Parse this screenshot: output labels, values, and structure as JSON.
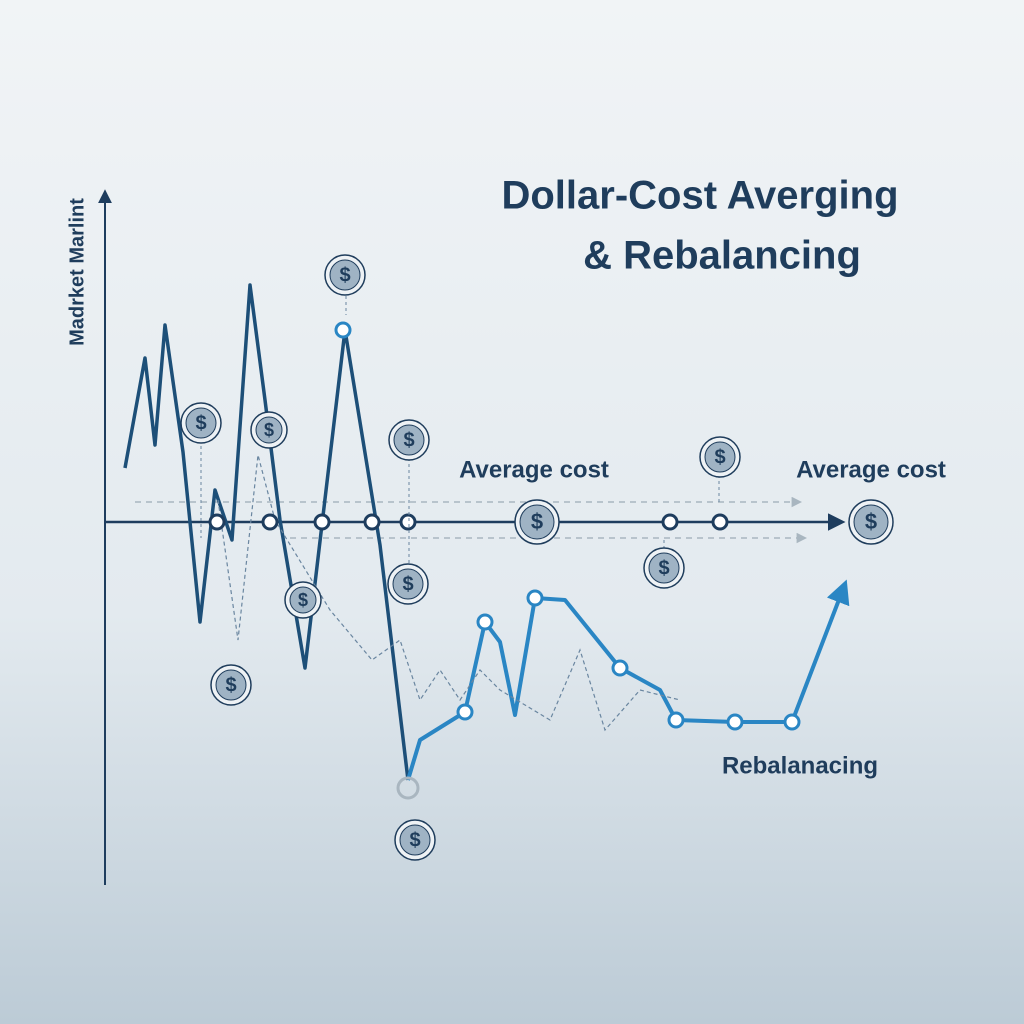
{
  "header": {
    "title_line1": "Dollar-Cost Averging",
    "title_line2": "& Rebalancing"
  },
  "axis": {
    "y_label": "Madrket Marlint"
  },
  "labels": {
    "average_cost_left": "Average cost",
    "average_cost_right": "Average cost",
    "rebalancing": "Rebalanacing"
  },
  "coin_symbol": "$"
}
